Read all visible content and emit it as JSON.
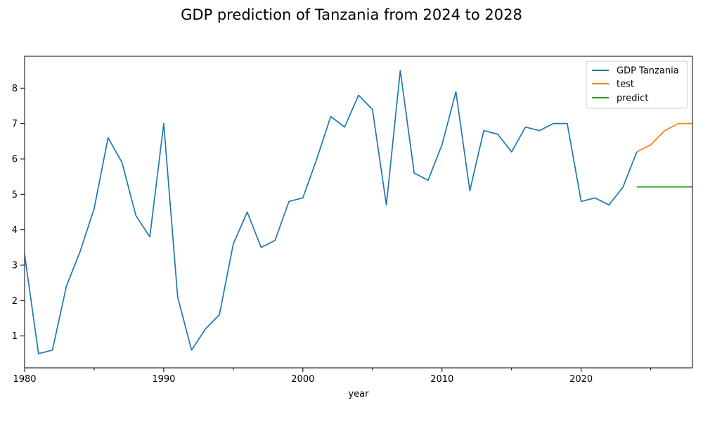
{
  "chart_data": {
    "type": "line",
    "title": "GDP prediction of Tanzania from 2024 to 2028",
    "xlabel": "year",
    "ylabel": "",
    "xlim": [
      1980,
      2028
    ],
    "ylim": [
      0.1,
      8.9
    ],
    "x_ticks": [
      1980,
      1990,
      2000,
      2010,
      2020
    ],
    "x_minor_ticks": [
      1985,
      1995,
      2005,
      2015,
      2025
    ],
    "y_ticks": [
      1,
      2,
      3,
      4,
      5,
      6,
      7,
      8
    ],
    "legend_position": "top-right",
    "series": [
      {
        "name": "GDP Tanzania",
        "color": "#1f77b4",
        "x": [
          1980,
          1981,
          1982,
          1983,
          1984,
          1985,
          1986,
          1987,
          1988,
          1989,
          1990,
          1991,
          1992,
          1993,
          1994,
          1995,
          1996,
          1997,
          1998,
          1999,
          2000,
          2001,
          2002,
          2003,
          2004,
          2005,
          2006,
          2007,
          2008,
          2009,
          2010,
          2011,
          2012,
          2013,
          2014,
          2015,
          2016,
          2017,
          2018,
          2019,
          2020,
          2021,
          2022,
          2023,
          2024
        ],
        "values": [
          3.3,
          0.5,
          0.6,
          2.4,
          3.4,
          4.6,
          6.6,
          5.9,
          4.4,
          3.8,
          7.0,
          2.1,
          0.6,
          1.2,
          1.6,
          3.6,
          4.5,
          3.5,
          3.7,
          4.8,
          4.9,
          6.0,
          7.2,
          6.9,
          7.8,
          7.4,
          4.7,
          8.5,
          5.6,
          5.4,
          6.4,
          7.9,
          5.1,
          6.8,
          6.7,
          6.2,
          6.9,
          6.8,
          7.0,
          7.0,
          4.8,
          4.9,
          4.7,
          5.2,
          6.2
        ]
      },
      {
        "name": "test",
        "color": "#ff7f0e",
        "x": [
          2024,
          2025,
          2026,
          2027,
          2028
        ],
        "values": [
          6.2,
          6.4,
          6.8,
          7.0,
          7.0
        ]
      },
      {
        "name": "predict",
        "color": "#2ca02c",
        "x": [
          2024,
          2025,
          2026,
          2027,
          2028
        ],
        "values": [
          5.21,
          5.21,
          5.21,
          5.21,
          5.21
        ]
      }
    ]
  }
}
